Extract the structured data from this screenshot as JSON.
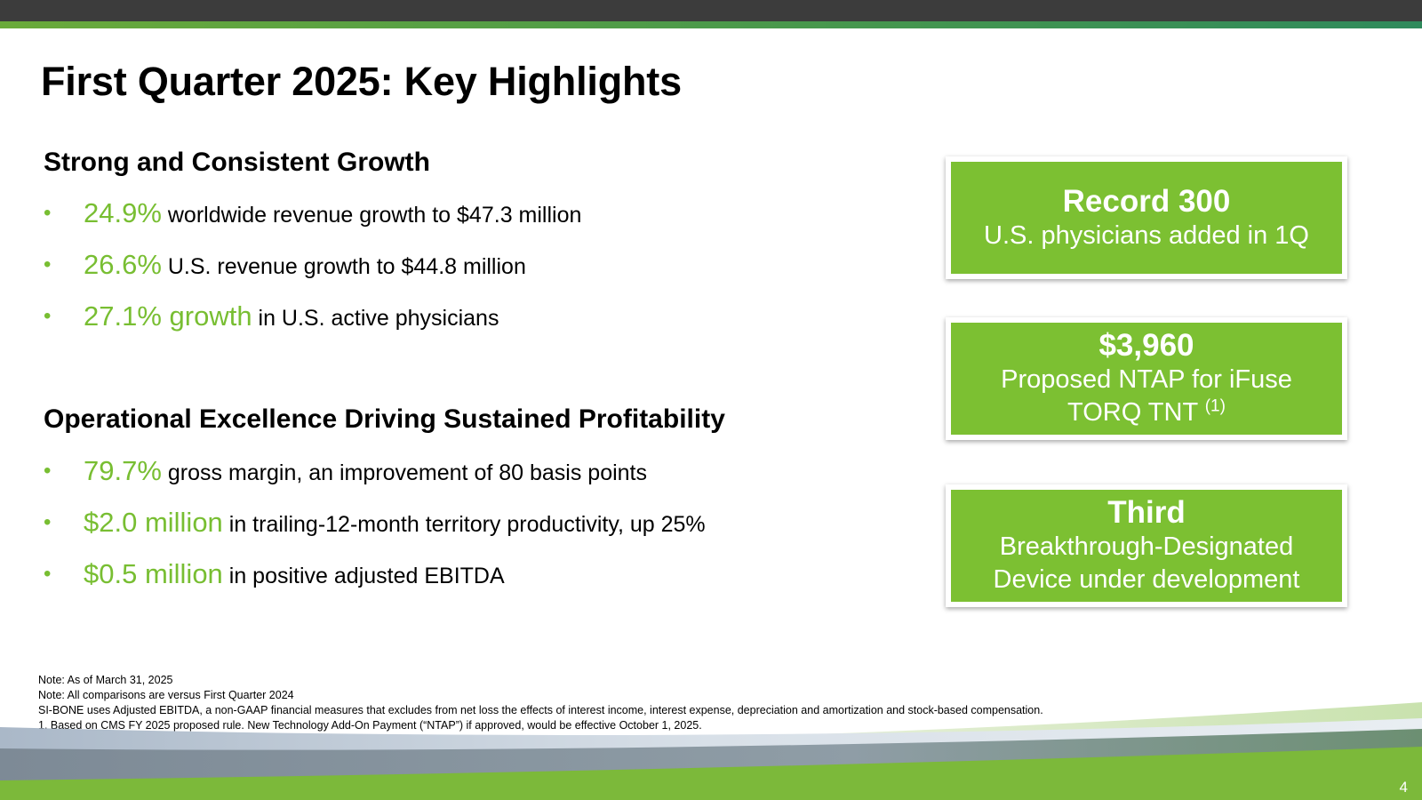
{
  "slide": {
    "title": "First Quarter 2025: Key Highlights",
    "page_number": "4"
  },
  "growth": {
    "heading": "Strong and Consistent Growth",
    "bullets": [
      {
        "highlight": "24.9%",
        "text": "worldwide revenue growth to $47.3 million"
      },
      {
        "highlight": "26.6%",
        "text": "U.S. revenue growth to $44.8 million"
      },
      {
        "highlight": "27.1% growth",
        "text": "in U.S. active physicians"
      }
    ]
  },
  "operations": {
    "heading": "Operational Excellence Driving Sustained Profitability",
    "bullets": [
      {
        "highlight": "79.7%",
        "text": "gross margin, an improvement of 80 basis points"
      },
      {
        "highlight": "$2.0 million",
        "text": "in trailing-12-month territory productivity, up 25%"
      },
      {
        "highlight": "$0.5 million",
        "text": "in positive adjusted EBITDA"
      }
    ]
  },
  "cards": [
    {
      "headline": "Record 300",
      "line1": "U.S. physicians added in 1Q"
    },
    {
      "headline": "$3,960",
      "line1": "Proposed NTAP for iFuse",
      "line2": "TORQ TNT",
      "sup": "(1)"
    },
    {
      "headline": "Third",
      "line1": "Breakthrough-Designated",
      "line2": "Device under development"
    }
  ],
  "notes": [
    "Note: As of March 31, 2025",
    "Note: All comparisons are versus First Quarter 2024",
    "SI-BONE uses Adjusted EBITDA, a non-GAAP financial measures that excludes from net loss the effects of interest income, interest expense, depreciation and amortization and stock-based compensation.",
    "1.  Based on CMS FY 2025 proposed rule. New Technology Add-On Payment (“NTAP”) if approved, would be effective October 1, 2025."
  ],
  "colors": {
    "accent_green": "#78be32",
    "card_green": "#7cc032",
    "top_bar": "#3c3c3c"
  }
}
